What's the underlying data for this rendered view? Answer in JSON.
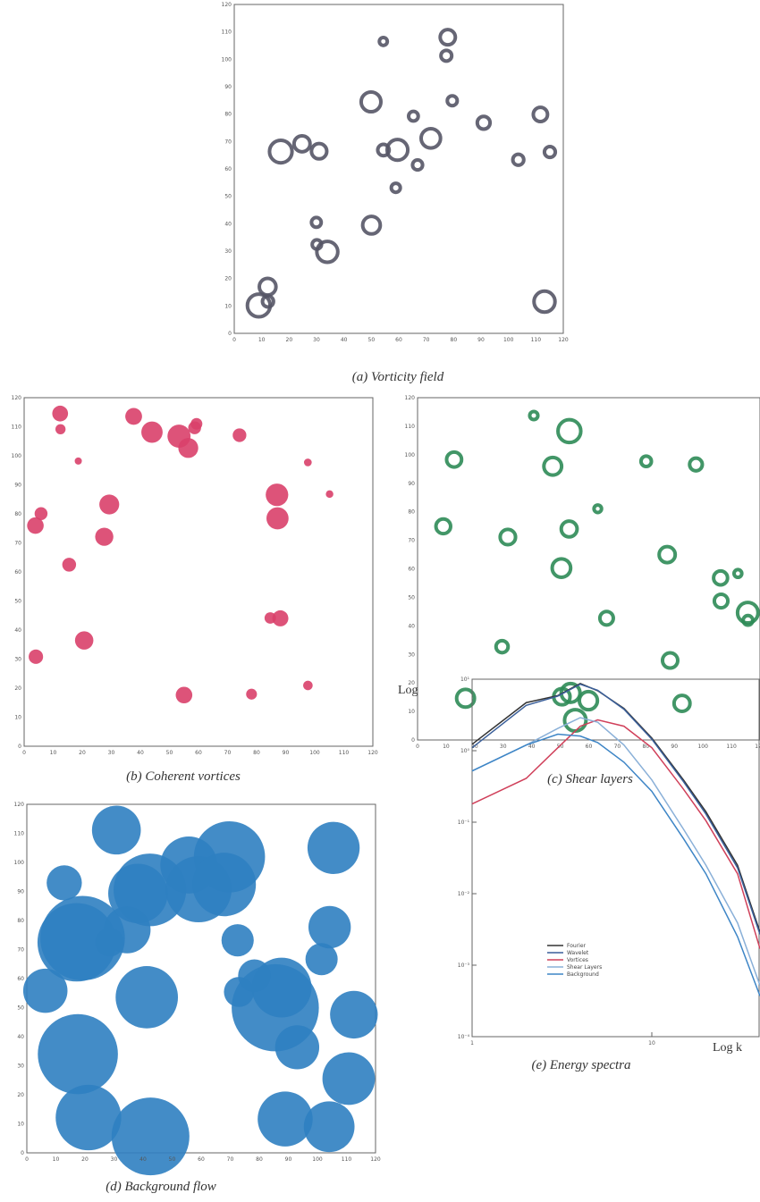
{
  "figure": {
    "panels": [
      {
        "caption": "(a)  Vorticity field"
      },
      {
        "caption": "(b)  Coherent vortices"
      },
      {
        "caption": "(c)  Shear layers"
      },
      {
        "caption": "(d)  Background flow"
      },
      {
        "caption": "(e)  Energy spectra"
      }
    ],
    "axis_ticks": [
      0,
      10,
      20,
      30,
      40,
      50,
      60,
      70,
      80,
      90,
      100,
      110,
      120
    ]
  },
  "chart_data": {
    "type": "line",
    "y_label": "Log E",
    "x_label": "Log k",
    "log_x": true,
    "log_y": true,
    "x": [
      1,
      2,
      3,
      4,
      5,
      7,
      10,
      15,
      20,
      30,
      40
    ],
    "xlim": [
      1,
      40
    ],
    "xticks": [
      1,
      10
    ],
    "ylim": [
      0.0001,
      10
    ],
    "yticks": [
      {
        "value": 10,
        "label": "10¹"
      },
      {
        "value": 1,
        "label": "10⁰"
      },
      {
        "value": 0.1,
        "label": "10⁻¹"
      },
      {
        "value": 0.01,
        "label": "10⁻²"
      },
      {
        "value": 0.001,
        "label": "10⁻³"
      },
      {
        "value": 0.0001,
        "label": "10⁻⁴"
      }
    ],
    "series": [
      {
        "name": "Fourier",
        "color": "#333333",
        "values": [
          1.23,
          4.7,
          5.9,
          8.7,
          6.9,
          3.9,
          1.5,
          0.39,
          0.14,
          0.025,
          0.0029
        ]
      },
      {
        "name": "Wavelet",
        "color": "#3a5f9a",
        "values": [
          1.1,
          4.3,
          5.8,
          8.5,
          7,
          3.8,
          1.45,
          0.37,
          0.13,
          0.023,
          0.0027
        ]
      },
      {
        "name": "Vortices",
        "color": "#d0405a",
        "values": [
          0.18,
          0.41,
          1.1,
          2.2,
          2.7,
          2.2,
          1.1,
          0.29,
          0.105,
          0.019,
          0.0017
        ]
      },
      {
        "name": "Shear Layers",
        "color": "#8ab0d8",
        "values": [
          0.52,
          1.2,
          2.05,
          2.9,
          2.5,
          1.2,
          0.39,
          0.08,
          0.025,
          0.0039,
          0.00052
        ]
      },
      {
        "name": "Background",
        "color": "#3d85c6",
        "values": [
          0.52,
          1.2,
          1.7,
          1.6,
          1.3,
          0.69,
          0.27,
          0.059,
          0.019,
          0.0025,
          0.00037
        ]
      }
    ]
  }
}
